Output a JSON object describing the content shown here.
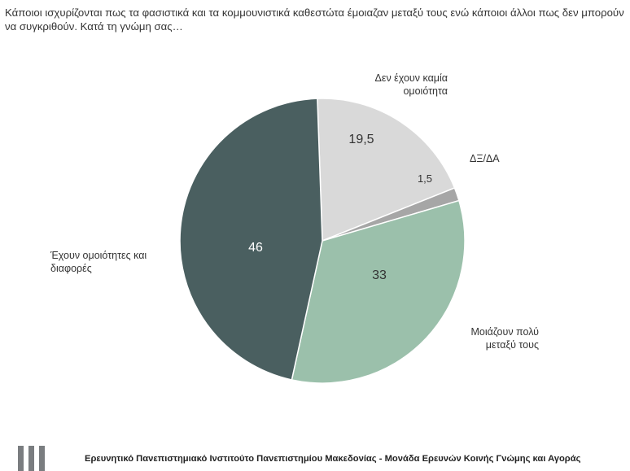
{
  "question": "Κάποιοι ισχυρίζονται πως τα φασιστικά και τα κομμουνιστικά καθεστώτα έμοιαζαν μεταξύ τους ενώ κάποιοι άλλοι πως δεν μπορούν να συγκριθούν. Κατά τη γνώμη σας…",
  "chart_data": {
    "type": "pie",
    "title": "",
    "slices": [
      {
        "label_lines": [
          "Δεν έχουν καμία",
          "ομοιότητα"
        ],
        "value": 19.5,
        "value_text": "19,5",
        "color": "#d9d9d9",
        "value_color": "#333333"
      },
      {
        "label_lines": [
          "ΔΞ/ΔΑ"
        ],
        "value": 1.5,
        "value_text": "1,5",
        "color": "#a6a6a6",
        "value_color": "#333333"
      },
      {
        "label_lines": [
          "Μοιάζουν πολύ",
          "μεταξύ τους"
        ],
        "value": 33,
        "value_text": "33",
        "color": "#9bc0ab",
        "value_color": "#333333"
      },
      {
        "label_lines": [
          "Έχουν ομοιότητες και",
          "διαφορές"
        ],
        "value": 46,
        "value_text": "46",
        "color": "#4a5f60",
        "value_color": "#ffffff"
      }
    ]
  },
  "footer": {
    "text": "Ερευνητικό Πανεπιστημιακό Ινστιτούτο Πανεπιστημίου Μακεδονίας - Μονάδα Ερευνών Κοινής Γνώμης και Αγοράς",
    "logo_icon": "university-logo-icon"
  }
}
